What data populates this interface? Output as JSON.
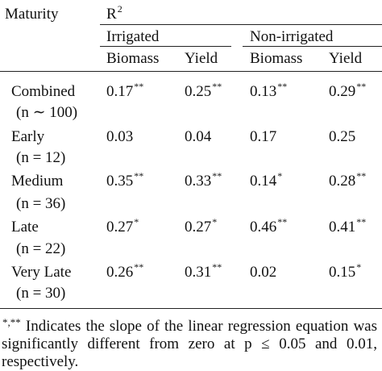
{
  "table": {
    "header": {
      "maturity": "Maturity",
      "r2_base": "R",
      "r2_exp": "2",
      "irrigated": "Irrigated",
      "non_irrigated": "Non-irrigated",
      "biomass": "Biomass",
      "yield": "Yield"
    },
    "rows": [
      {
        "name": "Combined",
        "n": "(n ∼ 100)",
        "ib": "0.17",
        "ib_sig": "**",
        "iy": "0.25",
        "iy_sig": "**",
        "nb": "0.13",
        "nb_sig": "**",
        "ny": "0.29",
        "ny_sig": "**"
      },
      {
        "name": "Early",
        "n": "(n = 12)",
        "ib": "0.03",
        "ib_sig": "",
        "iy": "0.04",
        "iy_sig": "",
        "nb": "0.17",
        "nb_sig": "",
        "ny": "0.25",
        "ny_sig": ""
      },
      {
        "name": "Medium",
        "n": "(n = 36)",
        "ib": "0.35",
        "ib_sig": "**",
        "iy": "0.33",
        "iy_sig": "**",
        "nb": "0.14",
        "nb_sig": "*",
        "ny": "0.28",
        "ny_sig": "**"
      },
      {
        "name": "Late",
        "n": "(n = 22)",
        "ib": "0.27",
        "ib_sig": "*",
        "iy": "0.27",
        "iy_sig": "*",
        "nb": "0.46",
        "nb_sig": "**",
        "ny": "0.41",
        "ny_sig": "**"
      },
      {
        "name": "Very Late",
        "n": "(n = 30)",
        "ib": "0.26",
        "ib_sig": "**",
        "iy": "0.31",
        "iy_sig": "**",
        "nb": "0.02",
        "nb_sig": "",
        "ny": "0.15",
        "ny_sig": "*"
      }
    ]
  },
  "footnote": {
    "marks": "*,**",
    "text": " Indicates the slope of the linear regression equation was significantly different from zero at p ≤ 0.05 and 0.01, respectively."
  }
}
